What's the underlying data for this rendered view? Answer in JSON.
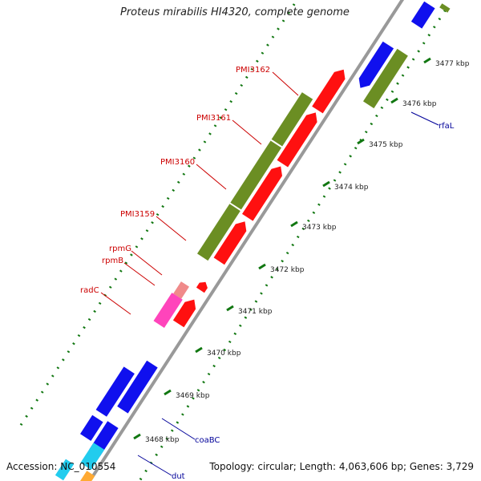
{
  "title": "Proteus mirabilis HI4320, complete genome",
  "footer": {
    "accession": "Accession: NC_010554",
    "summary": "Topology: circular; Length: 4,063,606 bp; Genes: 3,729"
  },
  "colors": {
    "backbone": "#999999",
    "ticks": "#117711",
    "red": "#ff1010",
    "olive": "#6b8e23",
    "blue": "#1010ee",
    "pink": "#ff44bb",
    "light_pink": "#f08a8a",
    "cyan": "#22ccee",
    "orange": "#ffaa33",
    "label_red": "#cc0000",
    "label_blue": "#000099"
  },
  "ticks": [
    {
      "label": "3468 kbp"
    },
    {
      "label": "3469 kbp"
    },
    {
      "label": "3470 kbp"
    },
    {
      "label": "3471 kbp"
    },
    {
      "label": "3472 kbp"
    },
    {
      "label": "3473 kbp"
    },
    {
      "label": "3474 kbp"
    },
    {
      "label": "3475 kbp"
    },
    {
      "label": "3476 kbp"
    },
    {
      "label": "3477 kbp"
    }
  ],
  "gene_labels": [
    {
      "name": "PMI3162",
      "color": "red"
    },
    {
      "name": "PMI3161",
      "color": "red"
    },
    {
      "name": "PMI3160",
      "color": "red"
    },
    {
      "name": "PMI3159",
      "color": "red"
    },
    {
      "name": "rpmG",
      "color": "red"
    },
    {
      "name": "rpmB",
      "color": "red"
    },
    {
      "name": "radC",
      "color": "red"
    },
    {
      "name": "rfaL",
      "color": "blue"
    },
    {
      "name": "coaBC",
      "color": "blue"
    },
    {
      "name": "dut",
      "color": "blue"
    }
  ]
}
